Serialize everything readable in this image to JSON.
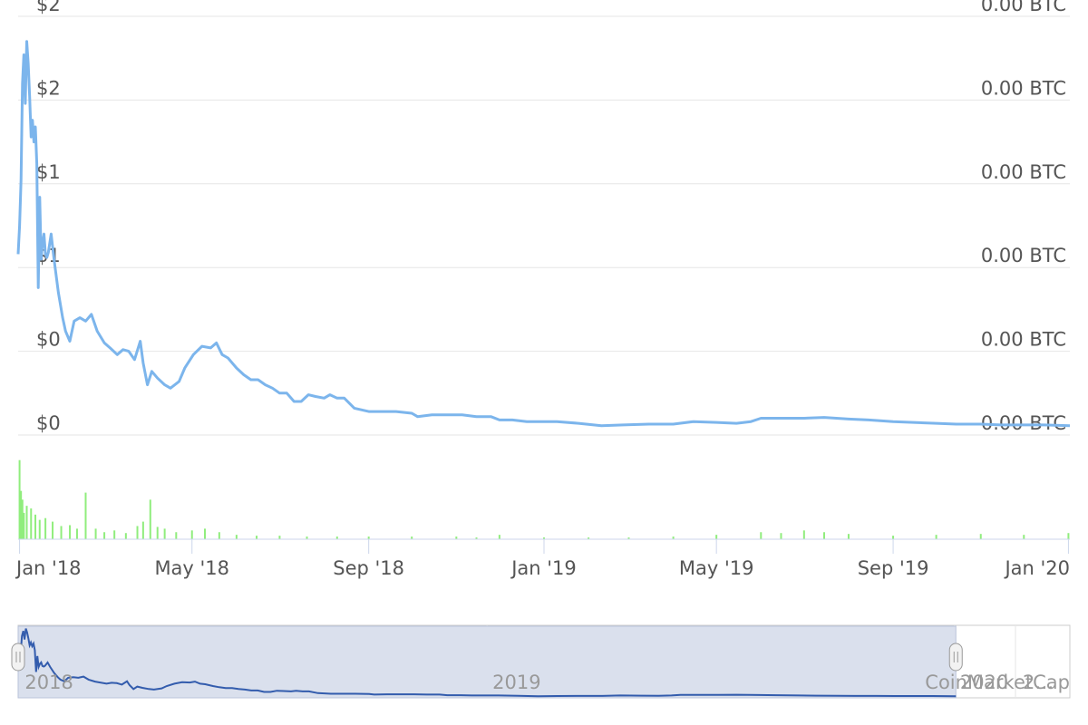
{
  "chart_data": {
    "type": "line",
    "price_axis_labels": [
      "$0",
      "$0",
      "$1",
      "$1",
      "$2",
      "$2"
    ],
    "btc_axis_labels": [
      "0.00 BTC",
      "0.00 BTC",
      "0.00 BTC",
      "0.00 BTC",
      "0.00 BTC",
      "0.00 BTC"
    ],
    "price_axis_values": [
      0.0,
      0.5,
      1.0,
      1.5,
      2.0,
      2.5
    ],
    "x_ticks": [
      {
        "label": "Jan '18",
        "date": "2018-01-01"
      },
      {
        "label": "May '18",
        "date": "2018-05-01"
      },
      {
        "label": "Sep '18",
        "date": "2018-09-01"
      },
      {
        "label": "Jan '19",
        "date": "2019-01-01"
      },
      {
        "label": "May '19",
        "date": "2019-05-01"
      },
      {
        "label": "Sep '19",
        "date": "2019-09-01"
      },
      {
        "label": "Jan '20",
        "date": "2020-01-01"
      }
    ],
    "x_range": [
      "2017-12-31",
      "2020-01-02"
    ],
    "y_range": [
      0.0,
      2.5
    ],
    "grid": true,
    "price_series": {
      "color": "#7cb5ec",
      "points": [
        [
          "2017-12-31",
          1.08
        ],
        [
          "2018-01-01",
          1.25
        ],
        [
          "2018-01-02",
          1.52
        ],
        [
          "2018-01-03",
          2.1
        ],
        [
          "2018-01-04",
          2.27
        ],
        [
          "2018-01-05",
          1.98
        ],
        [
          "2018-01-06",
          2.35
        ],
        [
          "2018-01-07",
          2.22
        ],
        [
          "2018-01-08",
          2.02
        ],
        [
          "2018-01-09",
          1.78
        ],
        [
          "2018-01-10",
          1.88
        ],
        [
          "2018-01-11",
          1.75
        ],
        [
          "2018-01-12",
          1.84
        ],
        [
          "2018-01-13",
          1.62
        ],
        [
          "2018-01-14",
          0.88
        ],
        [
          "2018-01-15",
          1.42
        ],
        [
          "2018-01-16",
          1.05
        ],
        [
          "2018-01-17",
          1.15
        ],
        [
          "2018-01-18",
          1.2
        ],
        [
          "2018-01-19",
          1.08
        ],
        [
          "2018-01-20",
          1.06
        ],
        [
          "2018-01-21",
          1.09
        ],
        [
          "2018-01-23",
          1.2
        ],
        [
          "2018-01-25",
          1.05
        ],
        [
          "2018-01-28",
          0.85
        ],
        [
          "2018-01-31",
          0.7
        ],
        [
          "2018-02-02",
          0.62
        ],
        [
          "2018-02-05",
          0.56
        ],
        [
          "2018-02-08",
          0.68
        ],
        [
          "2018-02-12",
          0.7
        ],
        [
          "2018-02-16",
          0.68
        ],
        [
          "2018-02-20",
          0.72
        ],
        [
          "2018-02-24",
          0.62
        ],
        [
          "2018-03-01",
          0.55
        ],
        [
          "2018-03-05",
          0.52
        ],
        [
          "2018-03-10",
          0.48
        ],
        [
          "2018-03-14",
          0.51
        ],
        [
          "2018-03-18",
          0.5
        ],
        [
          "2018-03-22",
          0.45
        ],
        [
          "2018-03-26",
          0.56
        ],
        [
          "2018-03-28",
          0.43
        ],
        [
          "2018-03-31",
          0.3
        ],
        [
          "2018-04-03",
          0.38
        ],
        [
          "2018-04-07",
          0.34
        ],
        [
          "2018-04-12",
          0.3
        ],
        [
          "2018-04-16",
          0.28
        ],
        [
          "2018-04-22",
          0.32
        ],
        [
          "2018-04-26",
          0.4
        ],
        [
          "2018-05-02",
          0.48
        ],
        [
          "2018-05-08",
          0.53
        ],
        [
          "2018-05-14",
          0.52
        ],
        [
          "2018-05-18",
          0.55
        ],
        [
          "2018-05-22",
          0.48
        ],
        [
          "2018-05-26",
          0.46
        ],
        [
          "2018-06-01",
          0.4
        ],
        [
          "2018-06-06",
          0.36
        ],
        [
          "2018-06-11",
          0.33
        ],
        [
          "2018-06-16",
          0.33
        ],
        [
          "2018-06-21",
          0.3
        ],
        [
          "2018-06-26",
          0.28
        ],
        [
          "2018-07-01",
          0.25
        ],
        [
          "2018-07-06",
          0.25
        ],
        [
          "2018-07-11",
          0.2
        ],
        [
          "2018-07-16",
          0.2
        ],
        [
          "2018-07-21",
          0.24
        ],
        [
          "2018-07-26",
          0.23
        ],
        [
          "2018-08-01",
          0.22
        ],
        [
          "2018-08-05",
          0.24
        ],
        [
          "2018-08-10",
          0.22
        ],
        [
          "2018-08-15",
          0.22
        ],
        [
          "2018-08-22",
          0.16
        ],
        [
          "2018-09-01",
          0.14
        ],
        [
          "2018-09-10",
          0.14
        ],
        [
          "2018-09-20",
          0.14
        ],
        [
          "2018-10-01",
          0.13
        ],
        [
          "2018-10-05",
          0.11
        ],
        [
          "2018-10-15",
          0.12
        ],
        [
          "2018-10-25",
          0.12
        ],
        [
          "2018-11-05",
          0.12
        ],
        [
          "2018-11-15",
          0.11
        ],
        [
          "2018-11-25",
          0.11
        ],
        [
          "2018-12-01",
          0.09
        ],
        [
          "2018-12-10",
          0.09
        ],
        [
          "2018-12-20",
          0.08
        ],
        [
          "2019-01-01",
          0.08
        ],
        [
          "2019-01-10",
          0.08
        ],
        [
          "2019-01-25",
          0.07
        ],
        [
          "2019-02-10",
          0.055
        ],
        [
          "2019-02-25",
          0.06
        ],
        [
          "2019-03-15",
          0.065
        ],
        [
          "2019-04-01",
          0.065
        ],
        [
          "2019-04-15",
          0.08
        ],
        [
          "2019-05-01",
          0.075
        ],
        [
          "2019-05-15",
          0.07
        ],
        [
          "2019-05-25",
          0.08
        ],
        [
          "2019-06-01",
          0.1
        ],
        [
          "2019-06-15",
          0.1
        ],
        [
          "2019-07-01",
          0.1
        ],
        [
          "2019-07-15",
          0.105
        ],
        [
          "2019-08-01",
          0.095
        ],
        [
          "2019-08-15",
          0.09
        ],
        [
          "2019-09-01",
          0.08
        ],
        [
          "2019-09-15",
          0.075
        ],
        [
          "2019-10-01",
          0.07
        ],
        [
          "2019-10-15",
          0.065
        ],
        [
          "2019-11-01",
          0.065
        ],
        [
          "2019-11-15",
          0.06
        ],
        [
          "2019-12-01",
          0.06
        ],
        [
          "2019-12-15",
          0.06
        ],
        [
          "2020-01-02",
          0.055
        ]
      ]
    },
    "volume_series": {
      "color": "#90ed7d",
      "points": [
        [
          "2018-01-01",
          90
        ],
        [
          "2018-01-02",
          55
        ],
        [
          "2018-01-03",
          45
        ],
        [
          "2018-01-04",
          30
        ],
        [
          "2018-01-06",
          38
        ],
        [
          "2018-01-09",
          35
        ],
        [
          "2018-01-12",
          28
        ],
        [
          "2018-01-15",
          22
        ],
        [
          "2018-01-19",
          24
        ],
        [
          "2018-01-24",
          20
        ],
        [
          "2018-01-30",
          15
        ],
        [
          "2018-02-05",
          16
        ],
        [
          "2018-02-10",
          12
        ],
        [
          "2018-02-16",
          53
        ],
        [
          "2018-02-23",
          12
        ],
        [
          "2018-03-01",
          8
        ],
        [
          "2018-03-08",
          10
        ],
        [
          "2018-03-16",
          7
        ],
        [
          "2018-03-24",
          15
        ],
        [
          "2018-03-28",
          20
        ],
        [
          "2018-04-02",
          45
        ],
        [
          "2018-04-07",
          14
        ],
        [
          "2018-04-12",
          12
        ],
        [
          "2018-04-20",
          8
        ],
        [
          "2018-05-01",
          10
        ],
        [
          "2018-05-10",
          12
        ],
        [
          "2018-05-20",
          8
        ],
        [
          "2018-06-01",
          5
        ],
        [
          "2018-06-15",
          4
        ],
        [
          "2018-07-01",
          4
        ],
        [
          "2018-07-20",
          3
        ],
        [
          "2018-08-10",
          3
        ],
        [
          "2018-09-01",
          3
        ],
        [
          "2018-10-01",
          3
        ],
        [
          "2018-11-01",
          3
        ],
        [
          "2018-11-15",
          2
        ],
        [
          "2018-12-01",
          5
        ],
        [
          "2019-01-01",
          2
        ],
        [
          "2019-02-01",
          2
        ],
        [
          "2019-03-01",
          2
        ],
        [
          "2019-04-01",
          3
        ],
        [
          "2019-05-01",
          5
        ],
        [
          "2019-06-01",
          8
        ],
        [
          "2019-06-15",
          7
        ],
        [
          "2019-07-01",
          10
        ],
        [
          "2019-07-15",
          8
        ],
        [
          "2019-08-01",
          6
        ],
        [
          "2019-09-01",
          4
        ],
        [
          "2019-10-01",
          5
        ],
        [
          "2019-11-01",
          6
        ],
        [
          "2019-12-01",
          5
        ],
        [
          "2020-01-01",
          7
        ]
      ]
    },
    "navigator": {
      "range_labels": [
        "2018",
        "2019",
        "2020"
      ],
      "selection_start": "2017-12-31",
      "selection_end": "2020-01-02"
    }
  },
  "credit": {
    "label": "CoinMarketCap",
    "overlap_text": "2…"
  },
  "colors": {
    "price_line": "#7cb5ec",
    "volume_bars": "#90ed7d",
    "navigator_line": "#335cad",
    "navigator_fill": "#dae0ed",
    "grid": "#e6e6e6"
  }
}
